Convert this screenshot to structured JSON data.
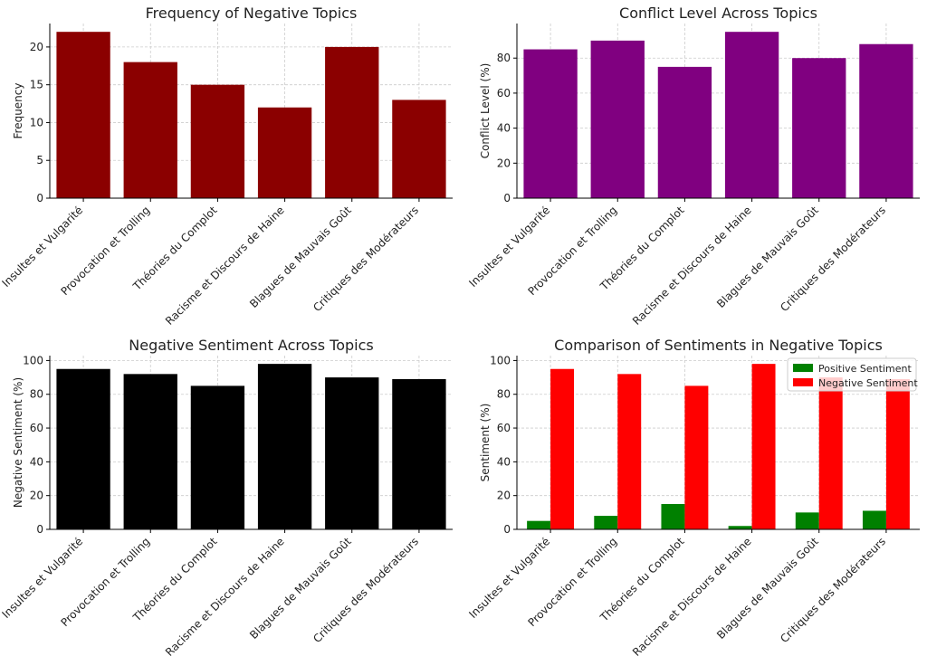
{
  "chart_data": [
    {
      "type": "bar",
      "title": "Frequency of Negative Topics",
      "xlabel": "",
      "ylabel": "Frequency",
      "categories": [
        "Insultes et Vulgarité",
        "Provocation et Trolling",
        "Théories du Complot",
        "Racisme et Discours de Haine",
        "Blagues de Mauvais Goût",
        "Critiques des Modérateurs"
      ],
      "series": [
        {
          "values": [
            22,
            18,
            15,
            12,
            20,
            13
          ],
          "color": "#8b0000"
        }
      ],
      "ylim": [
        0,
        23.1
      ],
      "yticks": [
        0,
        5,
        10,
        15,
        20
      ],
      "grid": true,
      "legend": null
    },
    {
      "type": "bar",
      "title": "Conflict Level Across Topics",
      "xlabel": "",
      "ylabel": "Conflict Level (%)",
      "categories": [
        "Insultes et Vulgarité",
        "Provocation et Trolling",
        "Théories du Complot",
        "Racisme et Discours de Haine",
        "Blagues de Mauvais Goût",
        "Critiques des Modérateurs"
      ],
      "series": [
        {
          "values": [
            85,
            90,
            75,
            95,
            80,
            88
          ],
          "color": "#800080"
        }
      ],
      "ylim": [
        0,
        99.75
      ],
      "yticks": [
        0,
        20,
        40,
        60,
        80
      ],
      "grid": true,
      "legend": null
    },
    {
      "type": "bar",
      "title": "Negative Sentiment Across Topics",
      "xlabel": "",
      "ylabel": "Negative Sentiment (%)",
      "categories": [
        "Insultes et Vulgarité",
        "Provocation et Trolling",
        "Théories du Complot",
        "Racisme et Discours de Haine",
        "Blagues de Mauvais Goût",
        "Critiques des Modérateurs"
      ],
      "series": [
        {
          "values": [
            95,
            92,
            85,
            98,
            90,
            89
          ],
          "color": "#000000"
        }
      ],
      "ylim": [
        0,
        102.9
      ],
      "yticks": [
        0,
        20,
        40,
        60,
        80,
        100
      ],
      "grid": true,
      "legend": null
    },
    {
      "type": "bar",
      "title": "Comparison of Sentiments in Negative Topics",
      "xlabel": "",
      "ylabel": "Sentiment (%)",
      "categories": [
        "Insultes et Vulgarité",
        "Provocation et Trolling",
        "Théories du Complot",
        "Racisme et Discours de Haine",
        "Blagues de Mauvais Goût",
        "Critiques des Modérateurs"
      ],
      "series": [
        {
          "name": "Positive Sentiment",
          "values": [
            5,
            8,
            15,
            2,
            10,
            11
          ],
          "color": "#008000"
        },
        {
          "name": "Negative Sentiment",
          "values": [
            95,
            92,
            85,
            98,
            90,
            89
          ],
          "color": "#ff0000"
        }
      ],
      "ylim": [
        0,
        102.9
      ],
      "yticks": [
        0,
        20,
        40,
        60,
        80,
        100
      ],
      "grid": true,
      "legend": "top-right"
    }
  ]
}
